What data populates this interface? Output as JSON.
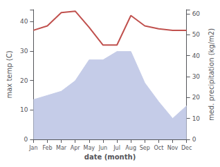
{
  "chart_data": {
    "type": "line",
    "xlabel": "date (month)",
    "ylabel": "max temp (C)",
    "y2label": "med. precipitation (kg/m2)",
    "categories": [
      "Jan",
      "Feb",
      "Mar",
      "Apr",
      "May",
      "Jun",
      "Jul",
      "Aug",
      "Sep",
      "Oct",
      "Nov",
      "Dec"
    ],
    "series": [
      {
        "type": "area",
        "axis": "y2",
        "color": "#c5cce8",
        "values": [
          19,
          21,
          23,
          28,
          38,
          38,
          42,
          42,
          27,
          18,
          10,
          16
        ]
      },
      {
        "type": "line",
        "color": "#c0504d",
        "values": [
          37,
          38.5,
          43,
          43.5,
          38,
          32,
          32,
          42,
          38.5,
          37.5,
          37,
          37
        ]
      }
    ],
    "ylim": [
      0,
      44
    ],
    "yticks": [
      0,
      10,
      20,
      30,
      40
    ],
    "y2lim": [
      0,
      62
    ],
    "y2ticks": [
      0,
      10,
      20,
      30,
      40,
      50,
      60
    ],
    "grid": false
  }
}
